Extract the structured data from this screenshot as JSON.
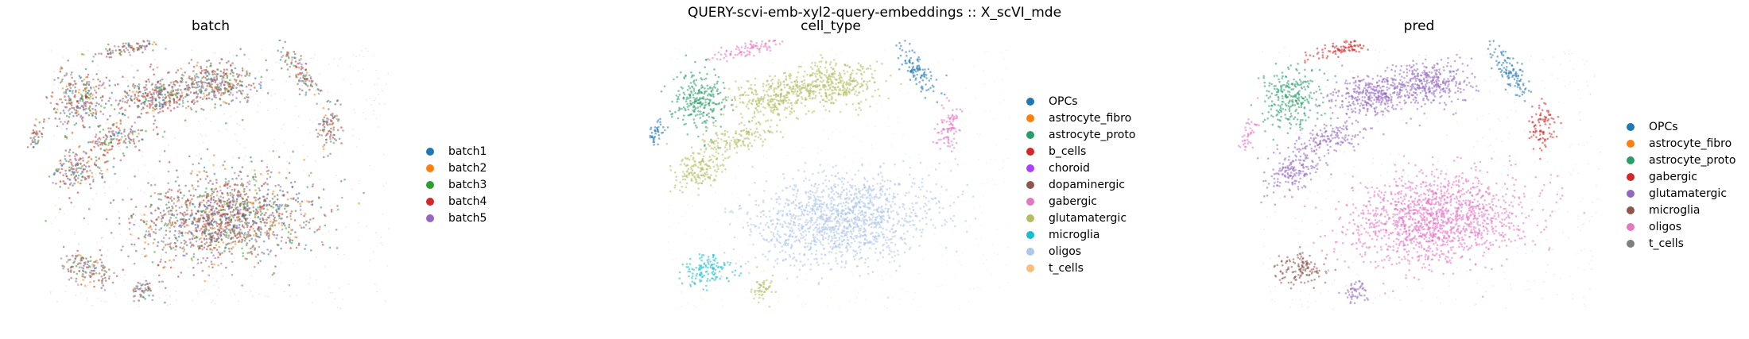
{
  "suptitle": "QUERY-scvi-emb-xyl2-query-embeddings :: X_scVI_mde",
  "chart_data": [
    {
      "type": "scatter",
      "title": "batch",
      "legend_position": "right",
      "grid": false,
      "axes_visible": false,
      "series": [
        {
          "name": "batch1",
          "color": "#1f77b4"
        },
        {
          "name": "batch2",
          "color": "#ff7f0e"
        },
        {
          "name": "batch3",
          "color": "#2ca02c"
        },
        {
          "name": "batch4",
          "color": "#d62728"
        },
        {
          "name": "batch5",
          "color": "#9467bd"
        }
      ]
    },
    {
      "type": "scatter",
      "title": "cell_type",
      "legend_position": "right",
      "grid": false,
      "axes_visible": false,
      "series": [
        {
          "name": "OPCs",
          "color": "#1f77b4"
        },
        {
          "name": "astrocyte_fibro",
          "color": "#ff7f0e"
        },
        {
          "name": "astrocyte_proto",
          "color": "#279e68"
        },
        {
          "name": "b_cells",
          "color": "#d62728"
        },
        {
          "name": "choroid",
          "color": "#aa40fc"
        },
        {
          "name": "dopaminergic",
          "color": "#8c564b"
        },
        {
          "name": "gabergic",
          "color": "#e377c2"
        },
        {
          "name": "glutamatergic",
          "color": "#b5bd61"
        },
        {
          "name": "microglia",
          "color": "#17becf"
        },
        {
          "name": "oligos",
          "color": "#aec7e8"
        },
        {
          "name": "t_cells",
          "color": "#ffbb78"
        }
      ]
    },
    {
      "type": "scatter",
      "title": "pred",
      "legend_position": "right",
      "grid": false,
      "axes_visible": false,
      "series": [
        {
          "name": "OPCs",
          "color": "#1f77b4"
        },
        {
          "name": "astrocyte_fibro",
          "color": "#ff7f0e"
        },
        {
          "name": "astrocyte_proto",
          "color": "#279e68"
        },
        {
          "name": "gabergic",
          "color": "#d62728"
        },
        {
          "name": "glutamatergic",
          "color": "#9467bd"
        },
        {
          "name": "microglia",
          "color": "#8c564b"
        },
        {
          "name": "oligos",
          "color": "#e377c2"
        },
        {
          "name": "t_cells",
          "color": "#7f7f7f"
        }
      ]
    }
  ]
}
